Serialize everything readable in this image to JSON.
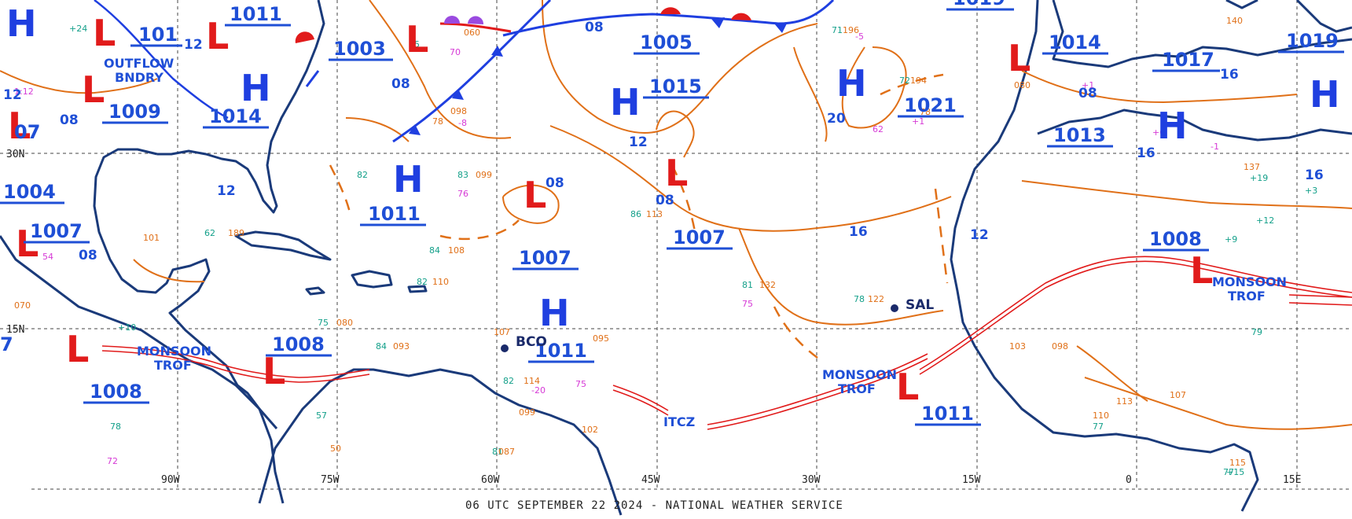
{
  "map": {
    "footer": "06 UTC SEPTEMBER 22 2024 - NATIONAL WEATHER SERVICE",
    "colors": {
      "coast": "#1a3a7a",
      "isobar": "#e07018",
      "front_blue": "#1f3fe0",
      "front_red": "#e11b1b",
      "labels": "#1f4fd6",
      "grid": "#444444"
    },
    "longitude_labels": [
      "90W",
      "75W",
      "60W",
      "45W",
      "30W",
      "15W",
      "0",
      "15E"
    ],
    "latitude_labels": [
      "30N",
      "15N"
    ],
    "pressure_centers": [
      {
        "label": "1011"
      },
      {
        "label": "101"
      },
      {
        "label": "1003"
      },
      {
        "label": "1005"
      },
      {
        "label": "1015"
      },
      {
        "label": "1019"
      },
      {
        "label": "1014"
      },
      {
        "label": "1017"
      },
      {
        "label": "1019"
      },
      {
        "label": "1009"
      },
      {
        "label": "1014"
      },
      {
        "label": "1021"
      },
      {
        "label": "1013"
      },
      {
        "label": "07"
      },
      {
        "label": "1004"
      },
      {
        "label": "1011"
      },
      {
        "label": "1007"
      },
      {
        "label": "1007"
      },
      {
        "label": "1007"
      },
      {
        "label": "1008"
      },
      {
        "label": "1008"
      },
      {
        "label": "1011"
      },
      {
        "label": "1008"
      },
      {
        "label": "1011"
      },
      {
        "label": "7"
      }
    ],
    "isobar_values": [
      {
        "label": "08"
      },
      {
        "label": "08"
      },
      {
        "label": "12"
      },
      {
        "label": "12"
      },
      {
        "label": "08"
      },
      {
        "label": "08"
      },
      {
        "label": "16"
      },
      {
        "label": "20"
      },
      {
        "label": "16"
      },
      {
        "label": "16"
      },
      {
        "label": "16"
      },
      {
        "label": "12"
      },
      {
        "label": "12"
      },
      {
        "label": "08"
      },
      {
        "label": "08"
      },
      {
        "label": "12"
      },
      {
        "label": "08"
      }
    ],
    "features": [
      {
        "label": "OUTFLOW"
      },
      {
        "label": "BNDRY"
      },
      {
        "label": "MONSOON"
      },
      {
        "label": "TROF"
      },
      {
        "label": "ITCZ"
      },
      {
        "label": "MONSOON"
      },
      {
        "label": "TROF"
      },
      {
        "label": "MONSOON"
      },
      {
        "label": "TROF"
      }
    ],
    "stations": [
      {
        "label": "BCO"
      },
      {
        "label": "SAL"
      }
    ],
    "highs": [
      {
        "label": "H"
      },
      {
        "label": "H"
      },
      {
        "label": "H"
      },
      {
        "label": "H"
      },
      {
        "label": "H"
      },
      {
        "label": "H"
      },
      {
        "label": "H"
      },
      {
        "label": "H"
      }
    ],
    "lows": [
      {
        "label": "L"
      },
      {
        "label": "L"
      },
      {
        "label": "L"
      },
      {
        "label": "L"
      },
      {
        "label": "L"
      },
      {
        "label": "L"
      },
      {
        "label": "L"
      },
      {
        "label": "L"
      },
      {
        "label": "L"
      },
      {
        "label": "L"
      },
      {
        "label": "L"
      },
      {
        "label": "L"
      },
      {
        "label": "L"
      }
    ],
    "observations": [
      {
        "text": "1:12"
      },
      {
        "text": "+24"
      },
      {
        "text": "-5"
      },
      {
        "text": "78"
      },
      {
        "text": "098"
      },
      {
        "text": "-8"
      },
      {
        "text": "060"
      },
      {
        "text": "65"
      },
      {
        "text": "70"
      },
      {
        "text": "71"
      },
      {
        "text": "196"
      },
      {
        "text": "72"
      },
      {
        "text": "194"
      },
      {
        "text": "78"
      },
      {
        "text": "+1"
      },
      {
        "text": "62"
      },
      {
        "text": "82"
      },
      {
        "text": "099"
      },
      {
        "text": "76"
      },
      {
        "text": "83"
      },
      {
        "text": "84"
      },
      {
        "text": "108"
      },
      {
        "text": "86"
      },
      {
        "text": "113"
      },
      {
        "text": "81"
      },
      {
        "text": "132"
      },
      {
        "text": "75"
      },
      {
        "text": "78"
      },
      {
        "text": "122"
      },
      {
        "text": "82"
      },
      {
        "text": "110"
      },
      {
        "text": "107"
      },
      {
        "text": "84"
      },
      {
        "text": "093"
      },
      {
        "text": "095"
      },
      {
        "text": "82"
      },
      {
        "text": "114"
      },
      {
        "text": "-20"
      },
      {
        "text": "75"
      },
      {
        "text": "099"
      },
      {
        "text": "102"
      },
      {
        "text": "81"
      },
      {
        "text": "087"
      },
      {
        "text": "62"
      },
      {
        "text": "189"
      },
      {
        "text": "75"
      },
      {
        "text": "080"
      },
      {
        "text": "101"
      },
      {
        "text": "54"
      },
      {
        "text": "070"
      },
      {
        "text": "+10"
      },
      {
        "text": "78"
      },
      {
        "text": "72"
      },
      {
        "text": "57"
      },
      {
        "text": "50"
      },
      {
        "text": "+3"
      },
      {
        "text": "+19"
      },
      {
        "text": "137"
      },
      {
        "text": "+12"
      },
      {
        "text": "+9"
      },
      {
        "text": "103"
      },
      {
        "text": "098"
      },
      {
        "text": "113"
      },
      {
        "text": "110"
      },
      {
        "text": "77"
      },
      {
        "text": "107"
      },
      {
        "text": "115"
      },
      {
        "text": "+15"
      },
      {
        "text": "79"
      },
      {
        "text": "77"
      },
      {
        "text": "+1"
      },
      {
        "text": "080"
      },
      {
        "text": "+6"
      },
      {
        "text": "-1"
      },
      {
        "text": "140"
      }
    ]
  }
}
